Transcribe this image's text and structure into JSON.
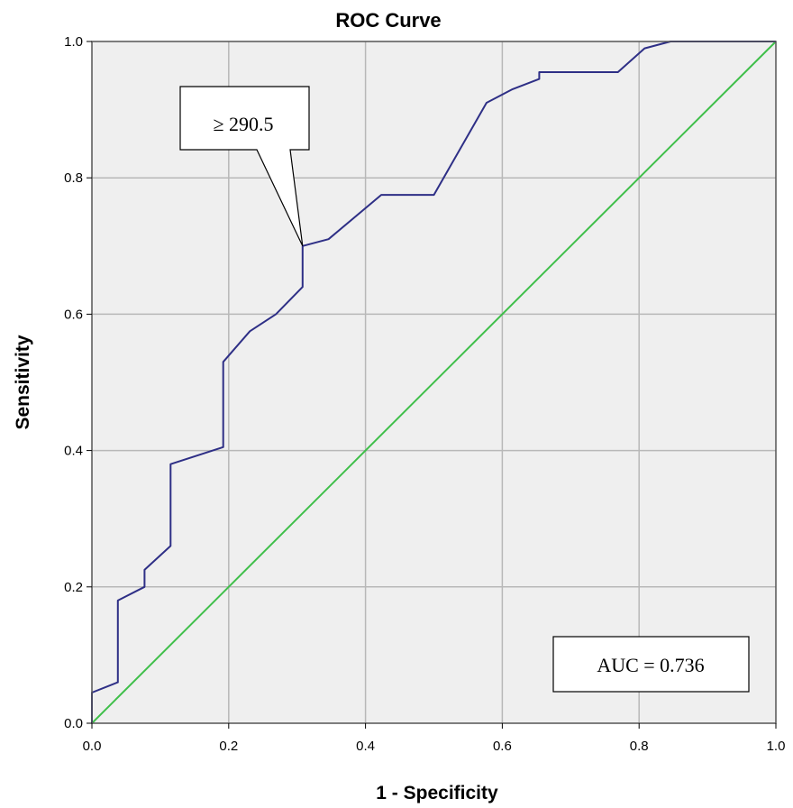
{
  "chart_data": {
    "type": "line",
    "title": "ROC Curve",
    "xlabel": "1 - Specificity",
    "ylabel": "Sensitivity",
    "xlim": [
      0,
      1
    ],
    "ylim": [
      0,
      1
    ],
    "xticks": [
      "0.0",
      "0.2",
      "0.4",
      "0.6",
      "0.8",
      "1.0"
    ],
    "yticks": [
      "0.0",
      "0.2",
      "0.4",
      "0.6",
      "0.8",
      "1.0"
    ],
    "grid": true,
    "colors": {
      "roc": "#2e2f86",
      "reference": "#3fbf4a",
      "plot_bg": "#efefef",
      "grid": "#b8b8b8"
    },
    "series": [
      {
        "x": [
          0,
          0,
          0.038,
          0.038,
          0.077,
          0.077,
          0.115,
          0.115,
          0.192,
          0.192,
          0.231,
          0.269,
          0.308,
          0.308,
          0.346,
          0.423,
          0.5,
          0.577,
          0.615,
          0.654,
          0.654,
          0.769,
          0.808,
          0.846,
          1.0
        ],
        "y": [
          0,
          0.045,
          0.06,
          0.18,
          0.2,
          0.225,
          0.26,
          0.38,
          0.405,
          0.53,
          0.575,
          0.6,
          0.64,
          0.7,
          0.71,
          0.775,
          0.775,
          0.91,
          0.93,
          0.945,
          0.955,
          0.955,
          0.99,
          1.0,
          1.0
        ]
      },
      {
        "x": [
          0,
          1
        ],
        "y": [
          0,
          1
        ]
      }
    ],
    "annotations": [
      {
        "text": "≥ 290.5",
        "point_x": 0.308,
        "point_y": 0.7
      },
      {
        "text": "AUC = 0.736"
      }
    ]
  }
}
